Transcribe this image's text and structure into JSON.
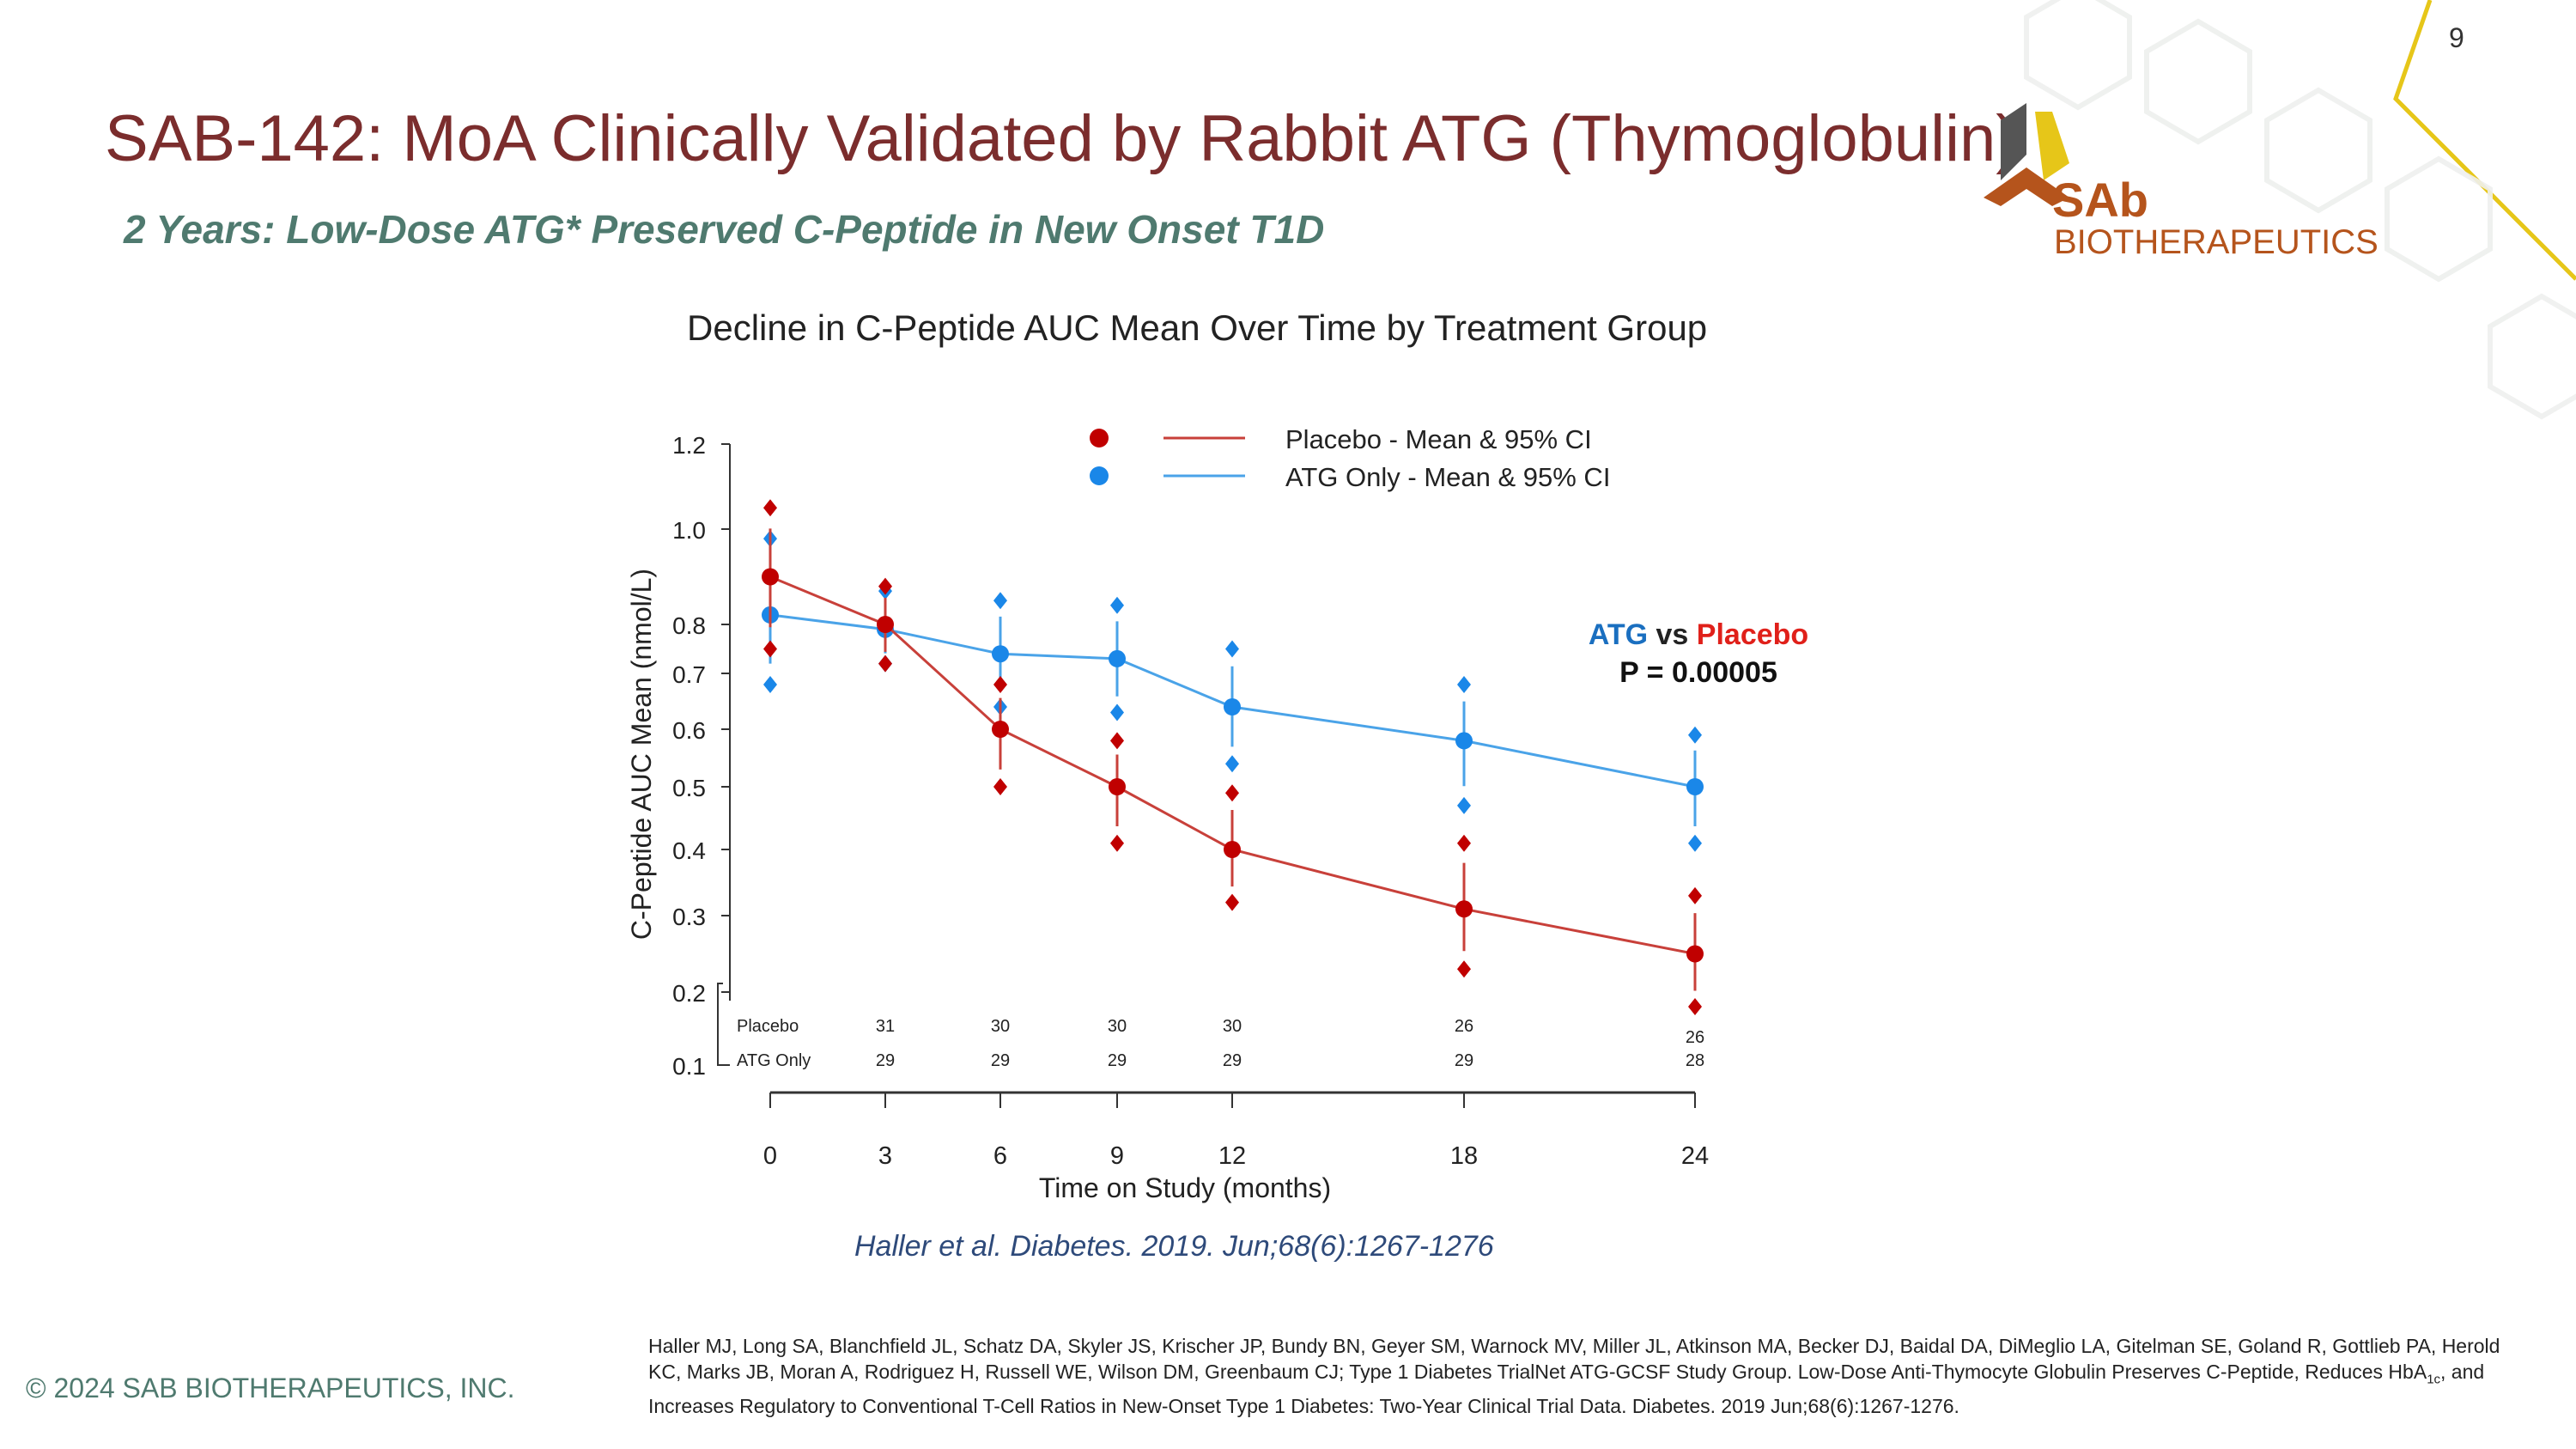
{
  "page_number": "9",
  "title": "SAB-142: MoA Clinically Validated by Rabbit ATG (Thymoglobulin)",
  "subtitle": "2 Years: Low-Dose ATG* Preserved C-Peptide in New Onset T1D",
  "logo": {
    "text1": "SAb",
    "text2": "BIOTHERAPEUTICS"
  },
  "copyright": "© 2024 SAB BIOTHERAPEUTICS, INC.",
  "source": "Haller et al. Diabetes. 2019. Jun;68(6):1267-1276",
  "citation": {
    "before": "Haller MJ, Long SA, Blanchfield JL, Schatz DA, Skyler JS, Krischer JP, Bundy BN, Geyer SM, Warnock MV, Miller JL, Atkinson MA, Becker DJ, Baidal DA, DiMeglio LA, Gitelman SE, Goland R, Gottlieb PA, Herold KC, Marks JB, Moran A, Rodriguez H, Russell WE, Wilson DM, Greenbaum CJ; Type 1 Diabetes TrialNet ATG-GCSF Study Group. Low-Dose Anti-Thymocyte Globulin Preserves C-Peptide, Reduces HbA",
    "sub": "1c",
    "after": ", and Increases Regulatory to Conventional T-Cell Ratios in New-Onset Type 1 Diabetes: Two-Year Clinical Trial Data. Diabetes. 2019 Jun;68(6):1267-1276."
  },
  "colors": {
    "placebo": "#c00000",
    "atg": "#1a87e8",
    "title": "#7b2d2d",
    "accent_line": "#e6c619"
  },
  "chart_data": {
    "type": "line",
    "title": "Decline in C-Peptide AUC Mean Over Time by Treatment Group",
    "xlabel": "Time on Study (months)",
    "ylabel": "C-Peptide AUC Mean (nmol/L)",
    "x": [
      0,
      3,
      6,
      9,
      12,
      18,
      24
    ],
    "yticks": [
      0.1,
      0.2,
      0.3,
      0.4,
      0.5,
      0.6,
      0.7,
      0.8,
      1.0,
      1.2
    ],
    "ytick_labels": [
      "0.1",
      "0.2",
      "0.3",
      "0.4",
      "0.5",
      "0.6",
      "0.7",
      "0.8",
      "1.0",
      "1.2"
    ],
    "ylim": [
      0.1,
      1.2
    ],
    "series": [
      {
        "name": "Placebo - Mean & 95% CI",
        "mean": [
          0.9,
          0.8,
          0.6,
          0.5,
          0.4,
          0.31,
          0.25
        ],
        "upper": [
          1.05,
          0.88,
          0.68,
          0.58,
          0.49,
          0.41,
          0.33
        ],
        "lower": [
          0.75,
          0.72,
          0.5,
          0.41,
          0.32,
          0.23,
          0.18
        ]
      },
      {
        "name": "ATG Only - Mean & 95% CI",
        "mean": [
          0.82,
          0.79,
          0.74,
          0.73,
          0.64,
          0.58,
          0.5
        ],
        "upper": [
          0.98,
          0.87,
          0.85,
          0.84,
          0.75,
          0.68,
          0.59
        ],
        "lower": [
          0.68,
          0.72,
          0.64,
          0.63,
          0.54,
          0.47,
          0.41
        ]
      }
    ],
    "n_at_risk": {
      "labels": [
        "Placebo",
        "ATG Only"
      ],
      "placebo": [
        "31",
        "30",
        "30",
        "30",
        "26",
        "26"
      ],
      "atg": [
        "29",
        "29",
        "29",
        "29",
        "29",
        "28"
      ]
    },
    "annotation": {
      "atg": "ATG",
      "vs": "vs",
      "placebo": "Placebo",
      "p": "P = 0.00005"
    },
    "legend": "top"
  }
}
